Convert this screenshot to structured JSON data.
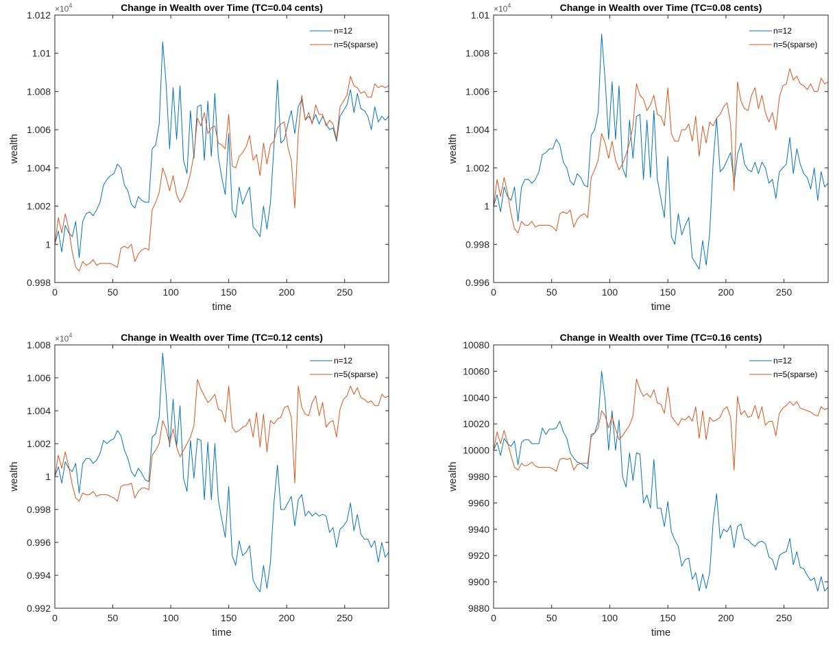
{
  "colors": {
    "n12": "#0072BD",
    "n5": "#D95319",
    "axis": "#262626"
  },
  "chart_data": [
    {
      "type": "line",
      "title": "Change in Wealth over Time (TC=0.04 cents)",
      "xlabel": "time",
      "ylabel": "wealth",
      "y_multiplier_label": "×10",
      "y_multiplier_exp": "4",
      "xlim": [
        0,
        288
      ],
      "ylim": [
        0.998,
        1.012
      ],
      "xticks": [
        0,
        50,
        100,
        150,
        200,
        250
      ],
      "yticks": [
        0.998,
        1,
        1.002,
        1.004,
        1.006,
        1.008,
        1.01,
        1.012
      ],
      "ytick_labels": [
        "0.998",
        "1",
        "1.002",
        "1.004",
        "1.006",
        "1.008",
        "1.01",
        "1.012"
      ],
      "legend": {
        "position": "top-right",
        "entries": [
          "n=12",
          "n=5(sparse)"
        ]
      },
      "grid": false,
      "x_step": 3,
      "series": [
        {
          "name": "n=12",
          "values": [
            1.0,
            1.0007,
            0.9996,
            1.001,
            1.0006,
            1.0004,
            1.0012,
            0.9993,
            1.0012,
            1.0016,
            1.0017,
            1.0015,
            1.0018,
            1.0022,
            1.0031,
            1.0034,
            1.0036,
            1.0037,
            1.0042,
            1.004,
            1.0031,
            1.0028,
            1.0021,
            1.0019,
            1.0025,
            1.0023,
            1.0022,
            1.0022,
            1.005,
            1.0052,
            1.0063,
            1.0106,
            1.0084,
            1.005,
            1.0082,
            1.0055,
            1.0083,
            1.0044,
            1.0037,
            1.007,
            1.0045,
            1.0072,
            1.0073,
            1.0044,
            1.0075,
            1.0046,
            1.0079,
            1.0046,
            1.0035,
            1.0026,
            1.0058,
            1.0018,
            1.0014,
            1.003,
            1.0021,
            1.0026,
            1.003,
            1.0009,
            1.0007,
            1.0004,
            1.002,
            1.0008,
            1.0022,
            1.0051,
            1.0086,
            1.0053,
            1.0055,
            1.0063,
            1.007,
            1.0058,
            1.0072,
            1.0076,
            1.0065,
            1.0067,
            1.0064,
            1.0068,
            1.0063,
            1.0067,
            1.0063,
            1.006,
            1.0061,
            1.0054,
            1.0067,
            1.007,
            1.0073,
            1.0081,
            1.0069,
            1.0079,
            1.0071,
            1.007,
            1.0067,
            1.006,
            1.0072,
            1.0064,
            1.0067,
            1.0065,
            1.0067
          ]
        },
        {
          "name": "n=5(sparse)",
          "values": [
            1.0,
            1.0014,
            1.0006,
            1.0016,
            1.0008,
            0.9996,
            0.9988,
            0.9986,
            0.9991,
            0.9989,
            0.999,
            0.9992,
            0.9989,
            0.999,
            0.999,
            0.999,
            0.999,
            0.9989,
            0.9988,
            0.9998,
            0.9999,
            0.9998,
            1.0,
            0.9991,
            0.9995,
            0.9997,
            0.9998,
            0.9997,
            1.0018,
            1.0022,
            1.0027,
            1.004,
            1.0035,
            1.0028,
            1.0036,
            1.0026,
            1.0022,
            1.0025,
            1.003,
            1.0037,
            1.0047,
            1.0066,
            1.0062,
            1.0069,
            1.0058,
            1.0061,
            1.0062,
            1.0053,
            1.0052,
            1.005,
            1.0068,
            1.0041,
            1.004,
            1.0046,
            1.0048,
            1.0051,
            1.0057,
            1.0044,
            1.0047,
            1.0036,
            1.0053,
            1.0042,
            1.0052,
            1.0054,
            1.0061,
            1.0063,
            1.0064,
            1.0051,
            1.0044,
            1.0019,
            1.0058,
            1.0078,
            1.0065,
            1.0069,
            1.0063,
            1.0073,
            1.0068,
            1.0068,
            1.0062,
            1.0065,
            1.0063,
            1.0055,
            1.0072,
            1.0075,
            1.0078,
            1.0088,
            1.0083,
            1.0082,
            1.0079,
            1.008,
            1.0077,
            1.0077,
            1.0084,
            1.0082,
            1.0083,
            1.0082,
            1.0083
          ]
        }
      ]
    },
    {
      "type": "line",
      "title": "Change in Wealth over Time (TC=0.08 cents)",
      "xlabel": "time",
      "ylabel": "wealth",
      "y_multiplier_label": "×10",
      "y_multiplier_exp": "4",
      "xlim": [
        0,
        288
      ],
      "ylim": [
        0.996,
        1.01
      ],
      "xticks": [
        0,
        50,
        100,
        150,
        200,
        250
      ],
      "yticks": [
        0.996,
        0.998,
        1,
        1.002,
        1.004,
        1.006,
        1.008,
        1.01
      ],
      "ytick_labels": [
        "0.996",
        "0.998",
        "1",
        "1.002",
        "1.004",
        "1.006",
        "1.008",
        "1.01"
      ],
      "legend": {
        "position": "top-right",
        "entries": [
          "n=12",
          "n=5(sparse)"
        ]
      },
      "grid": false,
      "x_step": 3,
      "series": [
        {
          "name": "n=12",
          "values": [
            1.0,
            1.0006,
            0.9997,
            1.001,
            1.0005,
            1.0003,
            1.001,
            0.9992,
            1.001,
            1.0014,
            1.0014,
            1.0012,
            1.0014,
            1.0018,
            1.0027,
            1.0028,
            1.003,
            1.003,
            1.0035,
            1.0032,
            1.0023,
            1.002,
            1.0013,
            1.0011,
            1.0017,
            1.0015,
            1.0011,
            1.001,
            1.0037,
            1.004,
            1.0049,
            1.009,
            1.0066,
            1.0035,
            1.0065,
            1.0035,
            1.0063,
            1.002,
            1.0015,
            1.0045,
            1.0025,
            1.0047,
            1.0048,
            1.0014,
            1.0045,
            1.0015,
            1.005,
            1.0014,
            1.0004,
            0.9994,
            1.0026,
            0.9984,
            0.998,
            0.9996,
            0.9985,
            0.999,
            0.9994,
            0.9973,
            0.997,
            0.9967,
            0.9982,
            0.9969,
            0.9986,
            1.0023,
            1.0046,
            1.0018,
            1.002,
            1.0024,
            1.0028,
            1.0012,
            1.0027,
            1.0033,
            1.0022,
            1.0019,
            1.0018,
            1.0023,
            1.0017,
            1.0023,
            1.002,
            1.0012,
            1.0014,
            1.0004,
            1.0018,
            1.002,
            1.0022,
            1.0036,
            1.0017,
            1.003,
            1.0022,
            1.0017,
            1.0015,
            1.0009,
            1.002,
            1.0003,
            1.0018,
            1.001,
            1.0012
          ]
        },
        {
          "name": "n=5(sparse)",
          "values": [
            1.0,
            1.0014,
            1.0005,
            1.0015,
            1.0007,
            0.9996,
            0.9988,
            0.9986,
            0.9992,
            0.999,
            0.999,
            0.9992,
            0.9989,
            0.999,
            0.999,
            0.999,
            0.999,
            0.9989,
            0.9987,
            0.9996,
            0.9997,
            0.9996,
            0.9998,
            0.9989,
            0.9993,
            0.9995,
            0.9996,
            0.9994,
            1.0015,
            1.0019,
            1.0024,
            1.0038,
            1.0033,
            1.0025,
            1.0034,
            1.0024,
            1.0019,
            1.0022,
            1.0027,
            1.0033,
            1.0042,
            1.0064,
            1.0058,
            1.0056,
            1.005,
            1.0053,
            1.0058,
            1.0048,
            1.0047,
            1.0042,
            1.0062,
            1.0038,
            1.0034,
            1.0034,
            1.004,
            1.004,
            1.0043,
            1.0034,
            1.0047,
            1.0026,
            1.0042,
            1.0033,
            1.0044,
            1.0042,
            1.0046,
            1.0048,
            1.0052,
            1.0054,
            1.0043,
            1.0008,
            1.0065,
            1.0055,
            1.0051,
            1.005,
            1.0058,
            1.0062,
            1.0051,
            1.0058,
            1.0049,
            1.0044,
            1.0049,
            1.004,
            1.0057,
            1.0063,
            1.0064,
            1.0072,
            1.0066,
            1.0068,
            1.0064,
            1.0063,
            1.0061,
            1.0064,
            1.006,
            1.006,
            1.0067,
            1.0064,
            1.0065
          ]
        }
      ]
    },
    {
      "type": "line",
      "title": "Change in Wealth over Time (TC=0.12 cents)",
      "xlabel": "time",
      "ylabel": "wealth",
      "y_multiplier_label": "×10",
      "y_multiplier_exp": "4",
      "xlim": [
        0,
        288
      ],
      "ylim": [
        0.992,
        1.008
      ],
      "xticks": [
        0,
        50,
        100,
        150,
        200,
        250
      ],
      "yticks": [
        0.992,
        0.994,
        0.996,
        0.998,
        1,
        1.002,
        1.004,
        1.006,
        1.008
      ],
      "ytick_labels": [
        "0.992",
        "0.994",
        "0.996",
        "0.998",
        "1",
        "1.002",
        "1.004",
        "1.006",
        "1.008"
      ],
      "legend": {
        "position": "top-right",
        "entries": [
          "n=12",
          "n=5(sparse)"
        ]
      },
      "grid": false,
      "x_step": 3,
      "series": [
        {
          "name": "n=12",
          "values": [
            1.0,
            1.0006,
            0.9996,
            1.0009,
            1.0005,
            1.0003,
            1.0008,
            0.999,
            1.0008,
            1.0011,
            1.0011,
            1.0008,
            1.001,
            1.0014,
            1.0022,
            1.002,
            1.0022,
            1.0023,
            1.0028,
            1.0025,
            1.0016,
            1.0011,
            1.0003,
            1.0,
            1.0005,
            1.0002,
            0.9998,
            0.9997,
            1.0024,
            1.0026,
            1.0036,
            1.0075,
            1.005,
            1.0018,
            1.0047,
            1.0018,
            1.0043,
            0.9999,
            0.9991,
            1.0022,
            0.9999,
            1.0023,
            1.0022,
            0.9986,
            1.0021,
            0.9986,
            1.002,
            0.9986,
            0.9974,
            0.9963,
            0.9994,
            0.9952,
            0.9946,
            0.9961,
            0.9952,
            0.9954,
            0.9958,
            0.9937,
            0.9933,
            0.993,
            0.9946,
            0.9932,
            0.9948,
            0.9984,
            1.0007,
            0.998,
            0.998,
            0.9984,
            0.9988,
            0.997,
            0.9986,
            0.9989,
            0.9976,
            0.9979,
            0.9976,
            0.9978,
            0.9976,
            0.9977,
            0.9976,
            0.9966,
            0.9969,
            0.9957,
            0.9968,
            0.997,
            0.9973,
            0.9984,
            0.9967,
            0.9977,
            0.9965,
            0.9962,
            0.9962,
            0.9957,
            0.9961,
            0.9948,
            0.996,
            0.9951,
            0.9954
          ]
        },
        {
          "name": "n=5(sparse)",
          "values": [
            1.0,
            1.0013,
            1.0005,
            1.0015,
            1.0006,
            0.9995,
            0.9987,
            0.9985,
            0.999,
            0.9989,
            0.9989,
            0.9991,
            0.9988,
            0.9989,
            0.9989,
            0.9989,
            0.9988,
            0.9987,
            0.9985,
            0.9994,
            0.9995,
            0.9995,
            0.9996,
            0.9987,
            0.9991,
            0.9993,
            0.9993,
            0.9992,
            1.0013,
            1.0016,
            1.002,
            1.0034,
            1.0029,
            1.002,
            1.0029,
            1.0018,
            1.0012,
            1.0016,
            1.002,
            1.0024,
            1.0031,
            1.0059,
            1.0053,
            1.0049,
            1.0045,
            1.0047,
            1.005,
            1.0041,
            1.004,
            1.0033,
            1.0055,
            1.003,
            1.0027,
            1.0028,
            1.003,
            1.0031,
            1.0035,
            1.0024,
            1.0039,
            1.0018,
            1.0038,
            1.0015,
            1.0034,
            1.0032,
            1.0035,
            1.0036,
            1.0042,
            1.0043,
            1.0036,
            0.9996,
            1.0055,
            1.0042,
            1.0038,
            1.0037,
            1.0045,
            1.0049,
            1.0037,
            1.0045,
            1.003,
            1.0033,
            1.0034,
            1.0024,
            1.0041,
            1.0047,
            1.0049,
            1.0055,
            1.005,
            1.0054,
            1.0048,
            1.0047,
            1.0045,
            1.0046,
            1.0043,
            1.0043,
            1.005,
            1.0048,
            1.0049
          ]
        }
      ]
    },
    {
      "type": "line",
      "title": "Change in Wealth over Time (TC=0.16 cents)",
      "xlabel": "time",
      "ylabel": "wealth",
      "y_multiplier_label": "",
      "y_multiplier_exp": "",
      "xlim": [
        0,
        288
      ],
      "ylim": [
        9880,
        10080
      ],
      "xticks": [
        0,
        50,
        100,
        150,
        200,
        250
      ],
      "yticks": [
        9880,
        9900,
        9920,
        9940,
        9960,
        9980,
        10000,
        10020,
        10040,
        10060,
        10080
      ],
      "ytick_labels": [
        "9880",
        "9900",
        "9920",
        "9940",
        "9960",
        "9980",
        "10000",
        "10020",
        "10040",
        "10060",
        "10080"
      ],
      "legend": {
        "position": "top-right",
        "entries": [
          "n=12",
          "n=5(sparse)"
        ]
      },
      "grid": false,
      "x_step": 3,
      "series": [
        {
          "name": "n=12",
          "values": [
            10000,
            10006,
            9996,
            10009,
            10005,
            10003,
            10007,
            9989,
            10006,
            10008,
            10008,
            10005,
            10005,
            10005,
            10017,
            10012,
            10016,
            10016,
            10017,
            10022,
            10014,
            10009,
            9998,
            9994,
            9991,
            9990,
            9988,
            9986,
            10012,
            10013,
            10022,
            10060,
            10038,
            10000,
            10030,
            10000,
            10023,
            9980,
            9972,
            9998,
            9977,
            9998,
            9997,
            9960,
            9966,
            9956,
            9993,
            9956,
            9956,
            9942,
            9961,
            9938,
            9932,
            9927,
            9912,
            9917,
            9918,
            9902,
            9907,
            9893,
            9906,
            9895,
            9907,
            9946,
            9967,
            9933,
            9940,
            9938,
            9943,
            9926,
            9942,
            9944,
            9933,
            9932,
            9929,
            9927,
            9930,
            9931,
            9929,
            9919,
            9917,
            9909,
            9920,
            9922,
            9923,
            9933,
            9913,
            9923,
            9911,
            9910,
            9905,
            9901,
            9903,
            9893,
            9904,
            9893,
            9896
          ]
        },
        {
          "name": "n=5(sparse)",
          "values": [
            10000,
            10014,
            10005,
            10015,
            10006,
            9996,
            9987,
            9985,
            9990,
            9988,
            9989,
            9991,
            9988,
            9987,
            9987,
            9987,
            9987,
            9986,
            9984,
            9993,
            9994,
            9993,
            9994,
            9985,
            9989,
            9990,
            9990,
            9990,
            10010,
            10013,
            10017,
            10030,
            10026,
            10017,
            10026,
            10016,
            10008,
            10011,
            10015,
            10019,
            10026,
            10054,
            10046,
            10041,
            10043,
            10040,
            10046,
            10036,
            10035,
            10028,
            10048,
            10026,
            10022,
            10019,
            10024,
            10023,
            10026,
            10022,
            10033,
            10009,
            10030,
            10008,
            10025,
            10022,
            10023,
            10025,
            10031,
            10033,
            10025,
            9985,
            10041,
            10027,
            10030,
            10025,
            10026,
            10034,
            10024,
            10033,
            10019,
            10022,
            10022,
            10011,
            10028,
            10032,
            10034,
            10037,
            10034,
            10037,
            10032,
            10031,
            10030,
            10029,
            10027,
            10026,
            10033,
            10031,
            10032
          ]
        }
      ]
    }
  ]
}
